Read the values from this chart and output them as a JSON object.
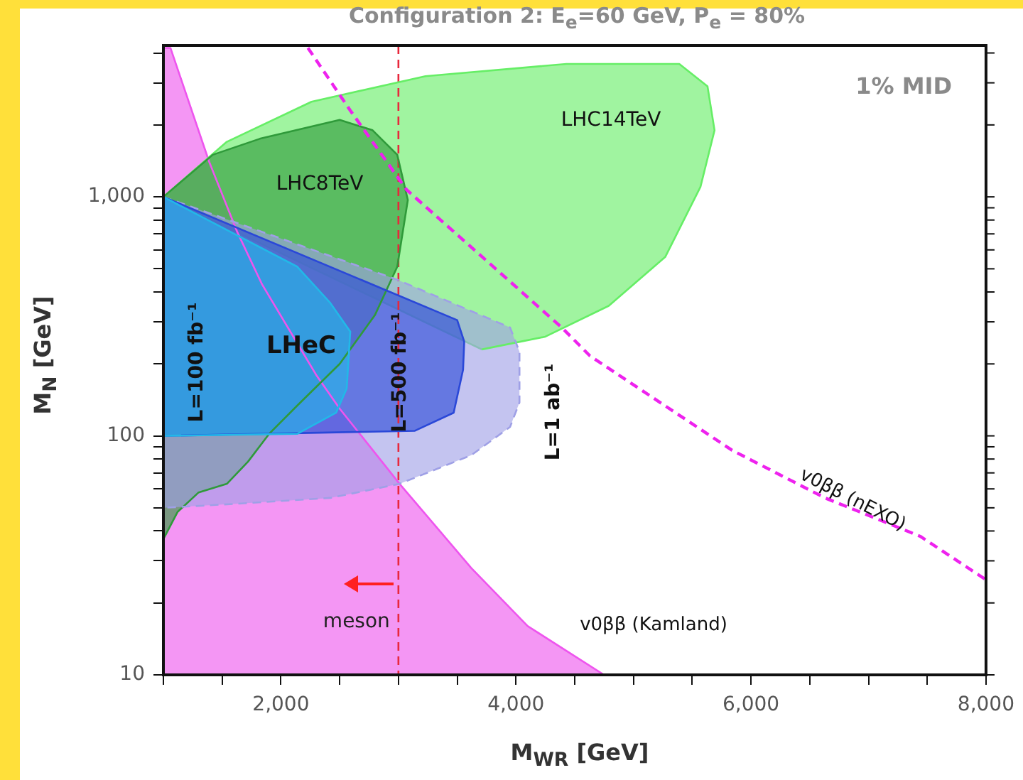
{
  "chart_data": {
    "type": "area",
    "title": "Configuration 2: E$_{e}$=60 GeV, P$_{e}$ = 80%",
    "xlabel": "M$_{WR}$ [GeV]",
    "ylabel": "M$_{N}$ [GeV]",
    "xlim": [
      1000,
      8000
    ],
    "ylim": [
      10,
      4300
    ],
    "log": "y",
    "grid": false,
    "legend": false,
    "marker": "none",
    "xticks": [
      {
        "value": 1000,
        "label": null
      },
      {
        "value": 1500,
        "label": null
      },
      {
        "value": 2000,
        "label": "2,000"
      },
      {
        "value": 2500,
        "label": null
      },
      {
        "value": 3000,
        "label": null
      },
      {
        "value": 3500,
        "label": null
      },
      {
        "value": 4000,
        "label": "4,000"
      },
      {
        "value": 4500,
        "label": null
      },
      {
        "value": 5000,
        "label": null
      },
      {
        "value": 5500,
        "label": null
      },
      {
        "value": 6000,
        "label": "6,000"
      },
      {
        "value": 6500,
        "label": null
      },
      {
        "value": 7000,
        "label": null
      },
      {
        "value": 7500,
        "label": null
      },
      {
        "value": 8000,
        "label": "8,000"
      }
    ],
    "yticks": [
      10,
      {
        "value": 20,
        "label": null
      },
      {
        "value": 30,
        "label": null
      },
      {
        "value": 40,
        "label": null
      },
      {
        "value": 50,
        "label": null
      },
      {
        "value": 60,
        "label": null
      },
      {
        "value": 70,
        "label": null
      },
      {
        "value": 80,
        "label": null
      },
      {
        "value": 90,
        "label": null
      },
      100,
      {
        "value": 200,
        "label": null
      },
      {
        "value": 300,
        "label": null
      },
      {
        "value": 400,
        "label": null
      },
      {
        "value": 500,
        "label": null
      },
      {
        "value": 600,
        "label": null
      },
      {
        "value": 700,
        "label": null
      },
      {
        "value": 800,
        "label": null
      },
      {
        "value": 900,
        "label": null
      },
      {
        "value": 1000,
        "label": "1,000"
      },
      {
        "value": 2000,
        "label": null
      },
      {
        "value": 3000,
        "label": null
      },
      {
        "value": 4000,
        "label": null
      }
    ],
    "series": [
      {
        "name": "v0ββ (Kamland)",
        "color": "#ee55ee",
        "x": [
          1020,
          1060,
          1390,
          1630,
          1840,
          2300,
          2500,
          3010,
          3620,
          4100,
          4750,
          1000,
          1000
        ],
        "values": [
          4200,
          4200,
          1400,
          710,
          430,
          180,
          130,
          63,
          28,
          16,
          10,
          10,
          4200
        ]
      },
      {
        "name": "LHC14TeV",
        "color": "#66ee66",
        "x": [
          1000,
          1540,
          2260,
          3230,
          4430,
          5390,
          5630,
          5690,
          5570,
          5270,
          4790,
          4250,
          3710
        ],
        "values": [
          1000,
          1700,
          2500,
          3200,
          3600,
          3600,
          2900,
          1900,
          1100,
          560,
          350,
          260,
          230
        ]
      },
      {
        "name": "LHC8TeV",
        "color": "#2f9a3a",
        "x": [
          1000,
          1420,
          1820,
          2500,
          2780,
          2990,
          3080,
          2990,
          2800,
          2500,
          2140,
          1900,
          1720,
          1540,
          1300,
          1120,
          1000
        ],
        "values": [
          1000,
          1500,
          1750,
          2100,
          1900,
          1500,
          970,
          510,
          320,
          200,
          134,
          102,
          78,
          63,
          58,
          48,
          37
        ]
      },
      {
        "name": "L=1 ab⁻¹",
        "color": "#9fa0e6",
        "line_style": "dashed",
        "x": [
          1000,
          2990,
          3950,
          4030,
          4030,
          3950,
          3620,
          3010,
          2420,
          1630,
          1000
        ],
        "values": [
          1000,
          450,
          284,
          225,
          138,
          109,
          83,
          63,
          55,
          52,
          50
        ]
      },
      {
        "name": "L=500 fb⁻¹",
        "color": "#2a48d8",
        "x": [
          1000,
          3500,
          3560,
          3550,
          3470,
          3140,
          1000
        ],
        "values": [
          1000,
          305,
          248,
          189,
          125,
          105,
          100
        ]
      },
      {
        "name": "L=100 fb⁻¹",
        "color": "#22b8e8",
        "x": [
          1000,
          2140,
          2420,
          2590,
          2560,
          2470,
          2140,
          1000
        ],
        "values": [
          1000,
          510,
          360,
          273,
          158,
          125,
          102,
          100
        ]
      },
      {
        "name": "v0ββ (nEXO)",
        "type": "line",
        "color": "#ee22ee",
        "line_style": "dashed",
        "x": [
          2230,
          2590,
          3070,
          4390,
          4630,
          5840,
          6630,
          7440,
          8000
        ],
        "values": [
          4200,
          2300,
          1070,
          284,
          216,
          87,
          55,
          38,
          25
        ]
      }
    ],
    "ref_lines": [
      {
        "axis": "x",
        "value": 3000,
        "label": "meson",
        "color": "#e8283c",
        "line_style": "dashed"
      }
    ],
    "annotations": [
      "LHeC",
      "1% MID"
    ]
  }
}
